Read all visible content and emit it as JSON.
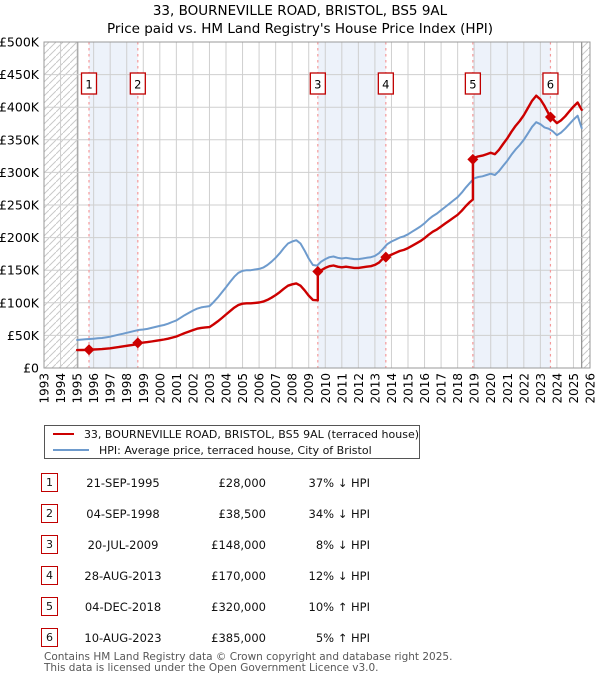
{
  "header": {
    "title": "33, BOURNEVILLE ROAD, BRISTOL, BS5 9AL",
    "subtitle": "Price paid vs. HM Land Registry's House Price Index (HPI)"
  },
  "legend": {
    "items": [
      {
        "label": "33, BOURNEVILLE ROAD, BRISTOL, BS5 9AL (terraced house)",
        "color": "#cc0000"
      },
      {
        "label": "HPI: Average price, terraced house, City of Bristol",
        "color": "#6e9bcd"
      }
    ]
  },
  "sales_table": {
    "rows": [
      {
        "num": "1",
        "date": "21-SEP-1995",
        "price": "£28,000",
        "delta": "37% ↓ HPI"
      },
      {
        "num": "2",
        "date": "04-SEP-1998",
        "price": "£38,500",
        "delta": "34% ↓ HPI"
      },
      {
        "num": "3",
        "date": "20-JUL-2009",
        "price": "£148,000",
        "delta": "8% ↓ HPI"
      },
      {
        "num": "4",
        "date": "28-AUG-2013",
        "price": "£170,000",
        "delta": "12% ↓ HPI"
      },
      {
        "num": "5",
        "date": "04-DEC-2018",
        "price": "£320,000",
        "delta": "10% ↑ HPI"
      },
      {
        "num": "6",
        "date": "10-AUG-2023",
        "price": "£385,000",
        "delta": "5% ↑ HPI"
      }
    ]
  },
  "footer": {
    "line1": "Contains HM Land Registry data © Crown copyright and database right 2025.",
    "line2": "This data is licensed under the Open Government Licence v3.0."
  },
  "chart_data": {
    "type": "line",
    "x_range": [
      1993,
      2026
    ],
    "y_range_k": [
      0,
      500
    ],
    "grid": true,
    "y_ticks": [
      {
        "v": 0,
        "label": "£0"
      },
      {
        "v": 50,
        "label": "£50K"
      },
      {
        "v": 100,
        "label": "£100K"
      },
      {
        "v": 150,
        "label": "£150K"
      },
      {
        "v": 200,
        "label": "£200K"
      },
      {
        "v": 250,
        "label": "£250K"
      },
      {
        "v": 300,
        "label": "£300K"
      },
      {
        "v": 350,
        "label": "£350K"
      },
      {
        "v": 400,
        "label": "£400K"
      },
      {
        "v": 450,
        "label": "£450K"
      },
      {
        "v": 500,
        "label": "£500K"
      }
    ],
    "x_ticks": [
      1993,
      1994,
      1995,
      1996,
      1997,
      1998,
      1999,
      2000,
      2001,
      2002,
      2003,
      2004,
      2005,
      2006,
      2007,
      2008,
      2009,
      2010,
      2011,
      2012,
      2013,
      2014,
      2015,
      2016,
      2017,
      2018,
      2019,
      2020,
      2021,
      2022,
      2023,
      2024,
      2025,
      2026
    ],
    "hatch_regions": [
      [
        1993,
        1995.04
      ],
      [
        2025.5,
        2026
      ]
    ],
    "ownership_bands": [
      [
        1995.72,
        1998.67
      ],
      [
        2009.55,
        2013.66
      ],
      [
        2018.92,
        2023.61
      ]
    ],
    "colors": {
      "property_line": "#cc0000",
      "hpi_line": "#6e9bcd",
      "sale_marker": "#cc0000",
      "sale_dashed_line": "#f59999",
      "band_fill": "#edf2fa",
      "grid_line": "#cfcfcf",
      "plot_border": "#999999",
      "hatch_line": "#c9c9c9",
      "hatch_edge": "#777777",
      "number_box_border": "#c00000"
    },
    "sales": [
      {
        "num": "1",
        "year": 1995.72,
        "price_k": 28,
        "date": "21-SEP-1995"
      },
      {
        "num": "2",
        "year": 1998.67,
        "price_k": 38.5,
        "date": "04-SEP-1998"
      },
      {
        "num": "3",
        "year": 2009.55,
        "price_k": 148,
        "date": "20-JUL-2009"
      },
      {
        "num": "4",
        "year": 2013.66,
        "price_k": 170,
        "date": "28-AUG-2013"
      },
      {
        "num": "5",
        "year": 2018.92,
        "price_k": 320,
        "date": "04-DEC-2018"
      },
      {
        "num": "6",
        "year": 2023.61,
        "price_k": 385,
        "date": "10-AUG-2023"
      }
    ],
    "series": [
      {
        "name": "hpi",
        "color": "#6e9bcd",
        "width": 2,
        "points": [
          [
            1995,
            43
          ],
          [
            1995.25,
            43.5
          ],
          [
            1995.5,
            44
          ],
          [
            1995.75,
            44.5
          ],
          [
            1996,
            45
          ],
          [
            1996.25,
            45.5
          ],
          [
            1996.5,
            46
          ],
          [
            1996.75,
            47
          ],
          [
            1997,
            48
          ],
          [
            1997.25,
            49.5
          ],
          [
            1997.5,
            51
          ],
          [
            1997.75,
            52.5
          ],
          [
            1998,
            54
          ],
          [
            1998.25,
            55.5
          ],
          [
            1998.5,
            57
          ],
          [
            1998.75,
            58.5
          ],
          [
            1999,
            59
          ],
          [
            1999.25,
            60
          ],
          [
            1999.5,
            61.5
          ],
          [
            1999.75,
            63
          ],
          [
            2000,
            64.5
          ],
          [
            2000.25,
            66
          ],
          [
            2000.5,
            68
          ],
          [
            2000.75,
            70.5
          ],
          [
            2001,
            73
          ],
          [
            2001.25,
            77
          ],
          [
            2001.5,
            81
          ],
          [
            2001.75,
            84.5
          ],
          [
            2002,
            88
          ],
          [
            2002.25,
            91
          ],
          [
            2002.5,
            93
          ],
          [
            2002.75,
            94
          ],
          [
            2003,
            95
          ],
          [
            2003.25,
            101
          ],
          [
            2003.5,
            108
          ],
          [
            2003.75,
            116
          ],
          [
            2004,
            124
          ],
          [
            2004.25,
            132
          ],
          [
            2004.5,
            140
          ],
          [
            2004.75,
            146
          ],
          [
            2005,
            149
          ],
          [
            2005.25,
            150
          ],
          [
            2005.5,
            150
          ],
          [
            2005.75,
            151
          ],
          [
            2006,
            152
          ],
          [
            2006.25,
            154
          ],
          [
            2006.5,
            158
          ],
          [
            2006.75,
            163
          ],
          [
            2007,
            169
          ],
          [
            2007.25,
            176
          ],
          [
            2007.5,
            184
          ],
          [
            2007.75,
            191
          ],
          [
            2008,
            194
          ],
          [
            2008.25,
            196
          ],
          [
            2008.5,
            191
          ],
          [
            2008.75,
            180
          ],
          [
            2009,
            168
          ],
          [
            2009.25,
            158
          ],
          [
            2009.5,
            157
          ],
          [
            2009.75,
            163
          ],
          [
            2010,
            167
          ],
          [
            2010.25,
            170
          ],
          [
            2010.5,
            171
          ],
          [
            2010.75,
            169
          ],
          [
            2011,
            168
          ],
          [
            2011.25,
            169
          ],
          [
            2011.5,
            168
          ],
          [
            2011.75,
            167
          ],
          [
            2012,
            167
          ],
          [
            2012.25,
            168
          ],
          [
            2012.5,
            169
          ],
          [
            2012.75,
            170
          ],
          [
            2013,
            172
          ],
          [
            2013.25,
            176
          ],
          [
            2013.5,
            183
          ],
          [
            2013.75,
            190
          ],
          [
            2014,
            194
          ],
          [
            2014.25,
            197
          ],
          [
            2014.5,
            200
          ],
          [
            2014.75,
            202
          ],
          [
            2015,
            205
          ],
          [
            2015.25,
            209
          ],
          [
            2015.5,
            213
          ],
          [
            2015.75,
            217
          ],
          [
            2016,
            222
          ],
          [
            2016.25,
            228
          ],
          [
            2016.5,
            233
          ],
          [
            2016.75,
            237
          ],
          [
            2017,
            242
          ],
          [
            2017.25,
            247
          ],
          [
            2017.5,
            252
          ],
          [
            2017.75,
            257
          ],
          [
            2018,
            262
          ],
          [
            2018.25,
            269
          ],
          [
            2018.5,
            277
          ],
          [
            2018.75,
            284
          ],
          [
            2019,
            291
          ],
          [
            2019.25,
            293
          ],
          [
            2019.5,
            294
          ],
          [
            2019.75,
            296
          ],
          [
            2020,
            298
          ],
          [
            2020.25,
            296
          ],
          [
            2020.5,
            302
          ],
          [
            2020.75,
            310
          ],
          [
            2021,
            318
          ],
          [
            2021.25,
            327
          ],
          [
            2021.5,
            335
          ],
          [
            2021.75,
            342
          ],
          [
            2022,
            350
          ],
          [
            2022.25,
            360
          ],
          [
            2022.5,
            370
          ],
          [
            2022.75,
            377
          ],
          [
            2023,
            374
          ],
          [
            2023.25,
            369
          ],
          [
            2023.5,
            367
          ],
          [
            2023.75,
            363
          ],
          [
            2024,
            357
          ],
          [
            2024.25,
            361
          ],
          [
            2024.5,
            367
          ],
          [
            2024.75,
            374
          ],
          [
            2025,
            381
          ],
          [
            2025.25,
            387
          ],
          [
            2025.5,
            368
          ]
        ]
      },
      {
        "name": "property",
        "color": "#cc0000",
        "width": 2.4,
        "points": [
          [
            1995,
            27.5
          ],
          [
            1995.3,
            27.6
          ],
          [
            1995.55,
            27.8
          ],
          [
            1995.72,
            28
          ],
          [
            1996,
            28.4
          ],
          [
            1996.25,
            28.7
          ],
          [
            1996.5,
            29
          ],
          [
            1996.75,
            29.6
          ],
          [
            1997,
            30.2
          ],
          [
            1997.25,
            31.2
          ],
          [
            1997.5,
            32.1
          ],
          [
            1997.75,
            33.1
          ],
          [
            1998,
            34
          ],
          [
            1998.25,
            35
          ],
          [
            1998.5,
            35.9
          ],
          [
            1998.67,
            36.6
          ],
          [
            1998.67,
            38.5
          ],
          [
            1999,
            39
          ],
          [
            1999.25,
            39.7
          ],
          [
            1999.5,
            40.7
          ],
          [
            1999.75,
            41.7
          ],
          [
            2000,
            42.7
          ],
          [
            2000.25,
            43.7
          ],
          [
            2000.5,
            45
          ],
          [
            2000.75,
            46.6
          ],
          [
            2001,
            48.3
          ],
          [
            2001.25,
            50.9
          ],
          [
            2001.5,
            53.6
          ],
          [
            2001.75,
            55.9
          ],
          [
            2002,
            58.2
          ],
          [
            2002.25,
            60.2
          ],
          [
            2002.5,
            61.5
          ],
          [
            2002.75,
            62.2
          ],
          [
            2003,
            62.8
          ],
          [
            2003.25,
            66.8
          ],
          [
            2003.5,
            71.4
          ],
          [
            2003.75,
            76.7
          ],
          [
            2004,
            82
          ],
          [
            2004.25,
            87.3
          ],
          [
            2004.5,
            92.6
          ],
          [
            2004.75,
            96.6
          ],
          [
            2005,
            98.6
          ],
          [
            2005.25,
            99.2
          ],
          [
            2005.5,
            99.2
          ],
          [
            2005.75,
            99.9
          ],
          [
            2006,
            100.5
          ],
          [
            2006.25,
            101.9
          ],
          [
            2006.5,
            104.5
          ],
          [
            2006.75,
            107.8
          ],
          [
            2007,
            111.8
          ],
          [
            2007.25,
            116.4
          ],
          [
            2007.5,
            121.7
          ],
          [
            2007.75,
            126.3
          ],
          [
            2008,
            128.3
          ],
          [
            2008.25,
            129.7
          ],
          [
            2008.5,
            126.3
          ],
          [
            2008.75,
            119.1
          ],
          [
            2009,
            111.1
          ],
          [
            2009.25,
            104.5
          ],
          [
            2009.55,
            103.9
          ],
          [
            2009.55,
            148
          ],
          [
            2009.75,
            149.8
          ],
          [
            2010,
            153.5
          ],
          [
            2010.25,
            156.2
          ],
          [
            2010.5,
            157.2
          ],
          [
            2010.75,
            155.3
          ],
          [
            2011,
            154.4
          ],
          [
            2011.25,
            155.3
          ],
          [
            2011.5,
            154.4
          ],
          [
            2011.75,
            153.5
          ],
          [
            2012,
            153.5
          ],
          [
            2012.25,
            154.4
          ],
          [
            2012.5,
            155.3
          ],
          [
            2012.75,
            156.2
          ],
          [
            2013,
            158.1
          ],
          [
            2013.25,
            161.7
          ],
          [
            2013.5,
            168.2
          ],
          [
            2013.66,
            170
          ],
          [
            2014,
            174
          ],
          [
            2014.25,
            176.7
          ],
          [
            2014.5,
            179.4
          ],
          [
            2014.75,
            181.2
          ],
          [
            2015,
            183.9
          ],
          [
            2015.25,
            187.5
          ],
          [
            2015.5,
            191.1
          ],
          [
            2015.75,
            194.7
          ],
          [
            2016,
            199.1
          ],
          [
            2016.25,
            204.5
          ],
          [
            2016.5,
            209
          ],
          [
            2016.75,
            212.6
          ],
          [
            2017,
            217.1
          ],
          [
            2017.25,
            221.6
          ],
          [
            2017.5,
            226.1
          ],
          [
            2017.75,
            230.5
          ],
          [
            2018,
            235
          ],
          [
            2018.25,
            241.3
          ],
          [
            2018.5,
            248.5
          ],
          [
            2018.75,
            254.8
          ],
          [
            2018.92,
            258.5
          ],
          [
            2018.92,
            320
          ],
          [
            2019,
            322.4
          ],
          [
            2019.25,
            324.6
          ],
          [
            2019.5,
            325.7
          ],
          [
            2019.75,
            327.9
          ],
          [
            2020,
            330.2
          ],
          [
            2020.25,
            327.9
          ],
          [
            2020.5,
            334.6
          ],
          [
            2020.75,
            343.5
          ],
          [
            2021,
            352.3
          ],
          [
            2021.25,
            362.3
          ],
          [
            2021.5,
            371.1
          ],
          [
            2021.75,
            378.9
          ],
          [
            2022,
            387.8
          ],
          [
            2022.25,
            398.9
          ],
          [
            2022.5,
            409.9
          ],
          [
            2022.75,
            417.7
          ],
          [
            2023,
            412
          ],
          [
            2023.25,
            402
          ],
          [
            2023.5,
            390
          ],
          [
            2023.61,
            385
          ],
          [
            2023.75,
            381.9
          ],
          [
            2024,
            375.6
          ],
          [
            2024.25,
            379.8
          ],
          [
            2024.5,
            386.1
          ],
          [
            2024.75,
            393.5
          ],
          [
            2025,
            400.9
          ],
          [
            2025.25,
            407.2
          ],
          [
            2025.5,
            396
          ]
        ]
      }
    ]
  }
}
